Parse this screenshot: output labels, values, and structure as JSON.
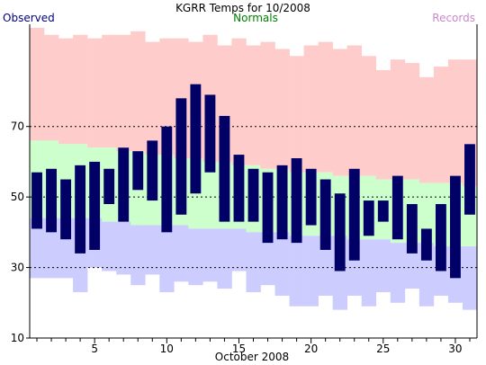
{
  "chart_data": {
    "type": "bar",
    "title": "KGRR Temps for 10/2008",
    "xlabel": "October 2008",
    "ylabel": "",
    "legend": {
      "observed": "Observed",
      "normals": "Normals",
      "records": "Records"
    },
    "legend_placement": "top (left, center, right)",
    "colors": {
      "observed": "#000066",
      "observed_label": "#000080",
      "normals_fill": "#ccffcc",
      "normals_label": "#008000",
      "records_high_fill": "#ffcccc",
      "records_low_fill": "#ccccff",
      "records_label": "#cc88cc"
    },
    "ylim": [
      10,
      99
    ],
    "yticks": [
      10,
      30,
      50,
      70
    ],
    "xlim": [
      0.5,
      31.5
    ],
    "xticks": [
      5,
      10,
      15,
      20,
      25,
      30
    ],
    "gridlines_y": [
      30,
      50,
      70
    ],
    "days": [
      1,
      2,
      3,
      4,
      5,
      6,
      7,
      8,
      9,
      10,
      11,
      12,
      13,
      14,
      15,
      16,
      17,
      18,
      19,
      20,
      21,
      22,
      23,
      24,
      25,
      26,
      27,
      28,
      29,
      30,
      31
    ],
    "series": [
      {
        "name": "Records",
        "role": "record_high",
        "values": [
          98,
          96,
          95,
          96,
          95,
          96,
          96,
          97,
          94,
          95,
          95,
          94,
          96,
          93,
          95,
          93,
          94,
          92,
          90,
          93,
          94,
          92,
          93,
          90,
          86,
          89,
          88,
          84,
          87,
          89,
          89
        ]
      },
      {
        "name": "Normals",
        "role": "normal_high",
        "values": [
          66,
          66,
          65,
          65,
          64,
          64,
          63,
          63,
          62,
          62,
          61,
          61,
          60,
          60,
          59,
          59,
          58,
          58,
          57,
          57,
          57,
          56,
          56,
          56,
          55,
          55,
          55,
          54,
          54,
          54,
          53
        ]
      },
      {
        "name": "Normals",
        "role": "normal_low",
        "values": [
          44,
          44,
          44,
          44,
          44,
          43,
          43,
          42,
          42,
          42,
          42,
          41,
          41,
          41,
          41,
          40,
          40,
          40,
          39,
          39,
          39,
          39,
          38,
          38,
          38,
          37,
          37,
          37,
          36,
          36,
          36
        ]
      },
      {
        "name": "Records",
        "role": "record_low",
        "values": [
          27,
          27,
          27,
          23,
          30,
          29,
          28,
          25,
          28,
          23,
          26,
          25,
          26,
          24,
          29,
          23,
          25,
          22,
          19,
          19,
          22,
          18,
          22,
          19,
          23,
          20,
          24,
          19,
          22,
          20,
          18
        ]
      },
      {
        "name": "Observed",
        "role": "observed_high",
        "values": [
          57,
          58,
          55,
          59,
          60,
          58,
          64,
          63,
          66,
          70,
          78,
          82,
          79,
          73,
          62,
          58,
          57,
          59,
          61,
          58,
          55,
          51,
          58,
          49,
          49,
          56,
          48,
          41,
          48,
          56,
          65
        ]
      },
      {
        "name": "Observed",
        "role": "observed_low",
        "values": [
          41,
          40,
          38,
          34,
          35,
          48,
          43,
          52,
          49,
          40,
          45,
          51,
          57,
          43,
          43,
          43,
          37,
          38,
          37,
          42,
          35,
          29,
          32,
          39,
          43,
          38,
          34,
          32,
          29,
          27,
          45
        ]
      }
    ]
  }
}
